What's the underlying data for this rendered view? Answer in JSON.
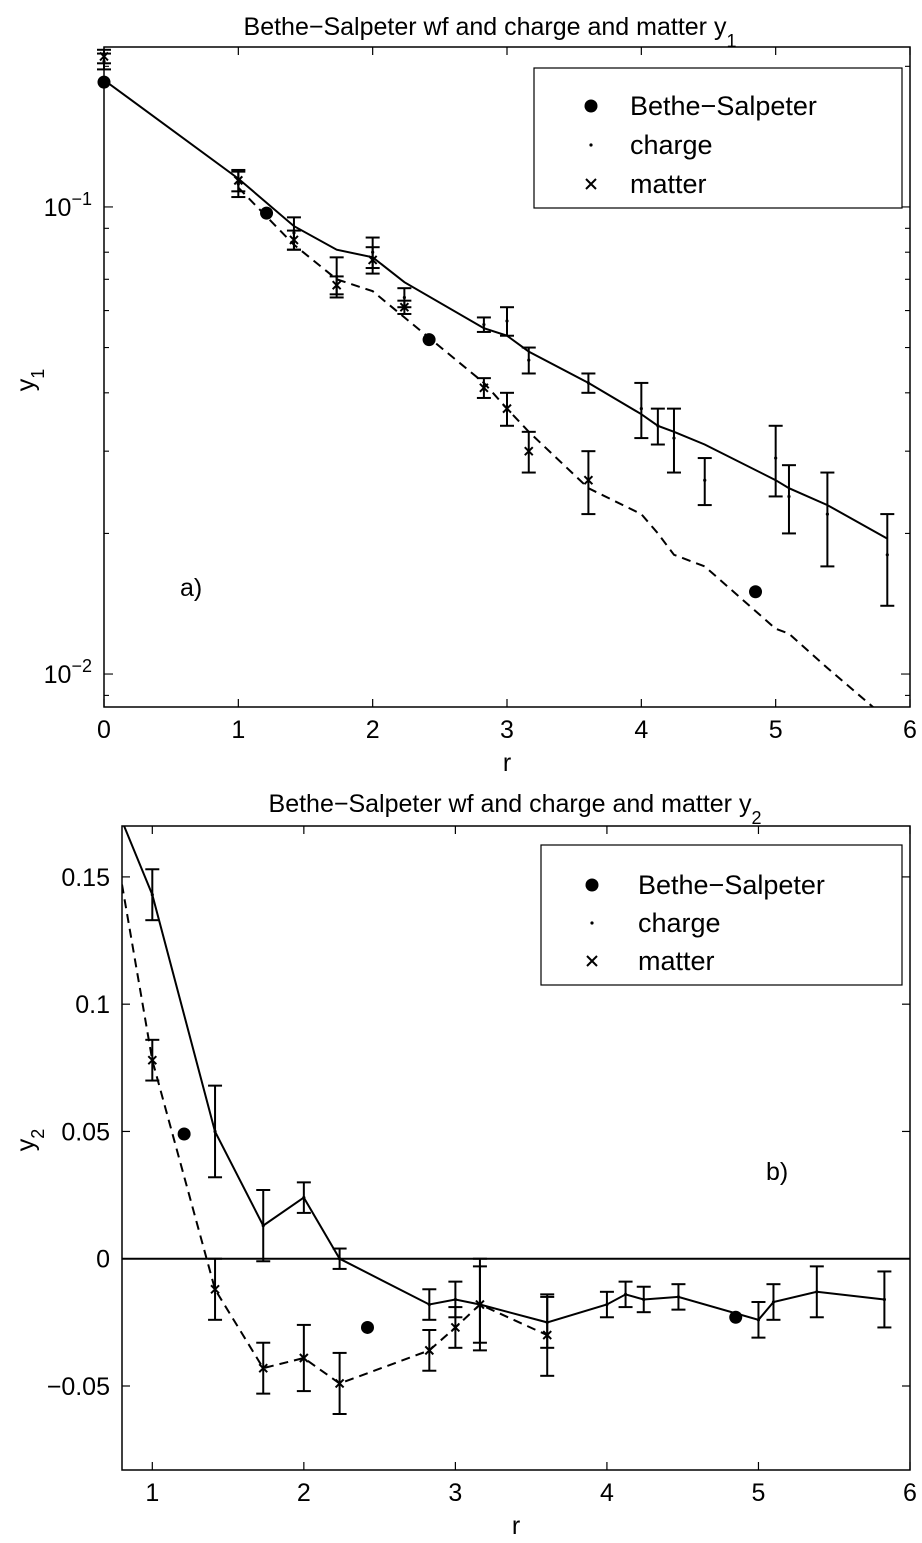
{
  "chart_data": [
    {
      "type": "scatter",
      "panel_label": "a)",
      "title_main": "Bethe−Salpeter wf and charge and matter y",
      "title_sub": "1",
      "xlabel": "r",
      "ylabel_main": "y",
      "ylabel_sub": "1",
      "xlim": [
        0,
        6
      ],
      "ylim": [
        0.0085,
        0.22
      ],
      "yscale": "log",
      "x_ticks": [
        "0",
        "1",
        "2",
        "3",
        "4",
        "5",
        "6"
      ],
      "y_ticks": [
        {
          "value": 0.1,
          "base": "10",
          "exp": "−1"
        },
        {
          "value": 0.01,
          "base": "10",
          "exp": "−2"
        }
      ],
      "legend": {
        "placement": "top-right",
        "entries": [
          {
            "label": "Bethe−Salpeter",
            "marker": "dot"
          },
          {
            "label": "charge",
            "marker": "point"
          },
          {
            "label": "matter",
            "marker": "x"
          }
        ]
      },
      "series": [
        {
          "name": "Bethe−Salpeter",
          "marker": "dot",
          "x": [
            0,
            1.21,
            2.42,
            4.85
          ],
          "y": [
            0.185,
            0.097,
            0.052,
            0.015
          ]
        },
        {
          "name": "charge",
          "marker": "point",
          "x": [
            0,
            1.0,
            1.414,
            1.732,
            2.0,
            2.236,
            2.828,
            3.0,
            3.162,
            3.606,
            4.0,
            4.123,
            4.243,
            4.472,
            5.0,
            5.099,
            5.385,
            5.831
          ],
          "y": [
            0.205,
            0.112,
            0.088,
            0.071,
            0.08,
            0.064,
            0.056,
            0.057,
            0.047,
            0.042,
            0.037,
            0.034,
            0.032,
            0.026,
            0.029,
            0.024,
            0.022,
            0.018
          ],
          "err": [
            0.008,
            0.007,
            0.007,
            0.007,
            0.006,
            0.003,
            0.002,
            0.004,
            0.003,
            0.002,
            0.005,
            0.003,
            0.005,
            0.003,
            0.005,
            0.004,
            0.005,
            0.004
          ]
        },
        {
          "name": "matter",
          "marker": "x",
          "x": [
            0,
            1.0,
            1.414,
            1.732,
            2.0,
            2.236,
            2.828,
            3.0,
            3.162,
            3.606
          ],
          "y": [
            0.21,
            0.114,
            0.085,
            0.068,
            0.077,
            0.061,
            0.041,
            0.037,
            0.03,
            0.026
          ],
          "err": [
            0.007,
            0.006,
            0.004,
            0.003,
            0.005,
            0.002,
            0.002,
            0.003,
            0.003,
            0.004
          ]
        }
      ],
      "lines": [
        {
          "style": "solid",
          "x": [
            0,
            1.0,
            1.414,
            1.732,
            2.0,
            2.236,
            2.828,
            3.0,
            3.162,
            3.606,
            4.0,
            4.123,
            4.243,
            4.472,
            5.0,
            5.099,
            5.385,
            5.831
          ],
          "y": [
            0.187,
            0.115,
            0.091,
            0.081,
            0.078,
            0.069,
            0.055,
            0.053,
            0.049,
            0.042,
            0.036,
            0.034,
            0.033,
            0.031,
            0.026,
            0.025,
            0.023,
            0.0195
          ]
        },
        {
          "style": "dashed",
          "x": [
            1.0,
            1.414,
            1.732,
            2.0,
            2.236,
            2.828,
            3.0,
            3.162,
            3.606,
            4.0,
            4.123,
            4.243,
            4.472,
            5.0,
            5.099,
            5.385,
            5.831
          ],
          "y": [
            0.11,
            0.083,
            0.07,
            0.066,
            0.058,
            0.042,
            0.037,
            0.033,
            0.025,
            0.022,
            0.02,
            0.018,
            0.017,
            0.0125,
            0.0122,
            0.0103,
            0.008
          ]
        }
      ]
    },
    {
      "type": "scatter",
      "panel_label": "b)",
      "title_main": "Bethe−Salpeter wf and charge and matter y",
      "title_sub": "2",
      "xlabel": "r",
      "ylabel_main": "y",
      "ylabel_sub": "2",
      "xlim": [
        0.8,
        6
      ],
      "ylim": [
        -0.083,
        0.17
      ],
      "yscale": "linear",
      "x_ticks": [
        "1",
        "2",
        "3",
        "4",
        "5",
        "6"
      ],
      "y_ticks": [
        "−0.05",
        "0",
        "0.05",
        "0.1",
        "0.15"
      ],
      "zero_line": true,
      "legend": {
        "placement": "top-right",
        "entries": [
          {
            "label": "Bethe−Salpeter",
            "marker": "dot"
          },
          {
            "label": "charge",
            "marker": "point"
          },
          {
            "label": "matter",
            "marker": "x"
          }
        ]
      },
      "series": [
        {
          "name": "Bethe−Salpeter",
          "marker": "dot",
          "x": [
            1.21,
            2.42,
            4.85
          ],
          "y": [
            0.049,
            -0.027,
            -0.023
          ]
        },
        {
          "name": "charge",
          "marker": "point",
          "x": [
            1.0,
            1.414,
            1.732,
            2.0,
            2.236,
            2.828,
            3.0,
            3.162,
            3.606,
            4.0,
            4.123,
            4.243,
            4.472,
            5.0,
            5.099,
            5.385,
            5.831
          ],
          "y": [
            0.143,
            0.05,
            0.013,
            0.024,
            0.0,
            -0.018,
            -0.016,
            -0.018,
            -0.025,
            -0.018,
            -0.014,
            -0.016,
            -0.015,
            -0.024,
            -0.017,
            -0.013,
            -0.016
          ],
          "err": [
            0.01,
            0.018,
            0.014,
            0.006,
            0.004,
            0.006,
            0.007,
            0.015,
            0.01,
            0.005,
            0.005,
            0.005,
            0.005,
            0.007,
            0.007,
            0.01,
            0.011
          ]
        },
        {
          "name": "matter",
          "marker": "x",
          "x": [
            1.0,
            1.414,
            1.732,
            2.0,
            2.236,
            2.828,
            3.0,
            3.162,
            3.606
          ],
          "y": [
            0.078,
            -0.012,
            -0.043,
            -0.039,
            -0.049,
            -0.036,
            -0.027,
            -0.018,
            -0.03
          ],
          "err": [
            0.008,
            0.012,
            0.01,
            0.013,
            0.012,
            0.008,
            0.008,
            0.018,
            0.016
          ]
        }
      ],
      "lines": [
        {
          "style": "solid",
          "x": [
            0.8,
            1.0,
            1.414,
            1.732,
            2.0,
            2.236,
            2.828,
            3.0,
            3.162,
            3.606,
            4.0,
            4.123,
            4.243,
            4.472,
            5.0,
            5.099,
            5.385,
            5.831
          ],
          "y": [
            0.172,
            0.143,
            0.05,
            0.013,
            0.024,
            0.0,
            -0.018,
            -0.016,
            -0.018,
            -0.025,
            -0.018,
            -0.014,
            -0.016,
            -0.015,
            -0.024,
            -0.017,
            -0.013,
            -0.016
          ]
        },
        {
          "style": "dashed",
          "x": [
            0.8,
            1.0,
            1.414,
            1.732,
            2.0,
            2.236,
            2.828,
            3.0,
            3.162,
            3.606
          ],
          "y": [
            0.147,
            0.078,
            -0.012,
            -0.043,
            -0.039,
            -0.049,
            -0.036,
            -0.027,
            -0.018,
            -0.03
          ]
        }
      ]
    }
  ]
}
